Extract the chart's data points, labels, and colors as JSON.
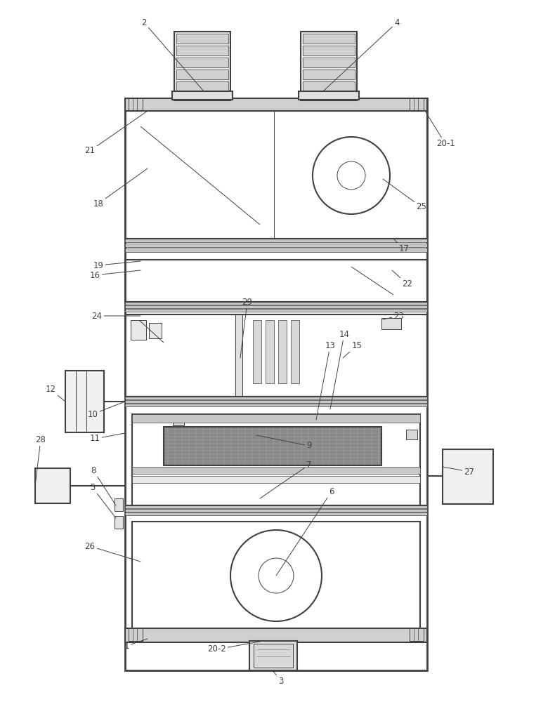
{
  "bg_color": "#ffffff",
  "lc": "#404040",
  "lw_outer": 2.0,
  "lw_main": 1.5,
  "lw_med": 1.0,
  "lw_thin": 0.7,
  "lw_hair": 0.5,
  "gray_light": "#f0f0f0",
  "gray_mid": "#d0d0d0",
  "gray_dark": "#888888",
  "gray_panel": "#c8c8c8",
  "gray_hatch": "#999999"
}
